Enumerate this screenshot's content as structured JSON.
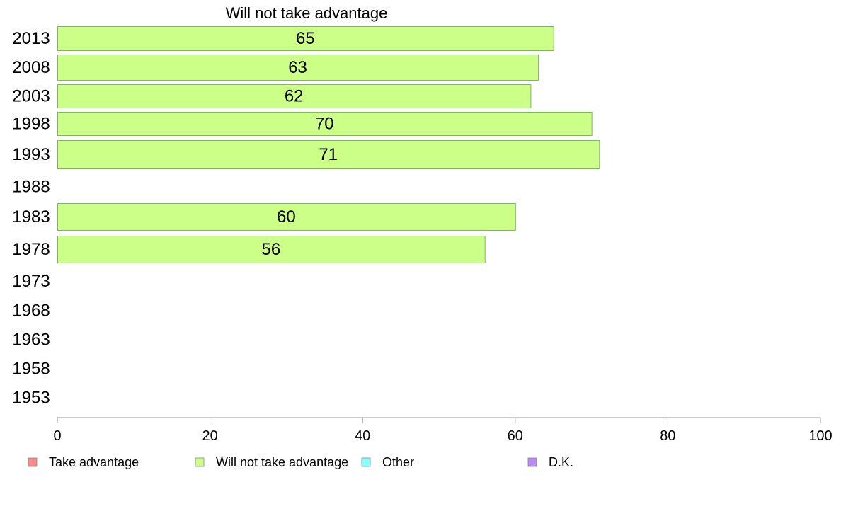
{
  "chart_data": {
    "type": "bar",
    "orientation": "horizontal",
    "title": "Will not take advantage",
    "categories": [
      "2013",
      "2008",
      "2003",
      "1998",
      "1993",
      "1988",
      "1983",
      "1978",
      "1973",
      "1968",
      "1963",
      "1958",
      "1953"
    ],
    "series": [
      {
        "name": "Will not take advantage",
        "color": "#ccff88",
        "values": [
          65,
          63,
          62,
          70,
          71,
          null,
          60,
          56,
          null,
          null,
          null,
          null,
          null
        ]
      }
    ],
    "xlim": [
      0,
      100
    ],
    "xticks": [
      0,
      20,
      40,
      60,
      80,
      100
    ],
    "grid": false,
    "legend_position": "bottom",
    "legend": [
      {
        "label": "Take advantage",
        "color": "#ff8888"
      },
      {
        "label": "Will not take advantage",
        "color": "#ccff88"
      },
      {
        "label": "Other",
        "color": "#88ffff"
      },
      {
        "label": "D.K.",
        "color": "#bb88ff"
      }
    ]
  }
}
